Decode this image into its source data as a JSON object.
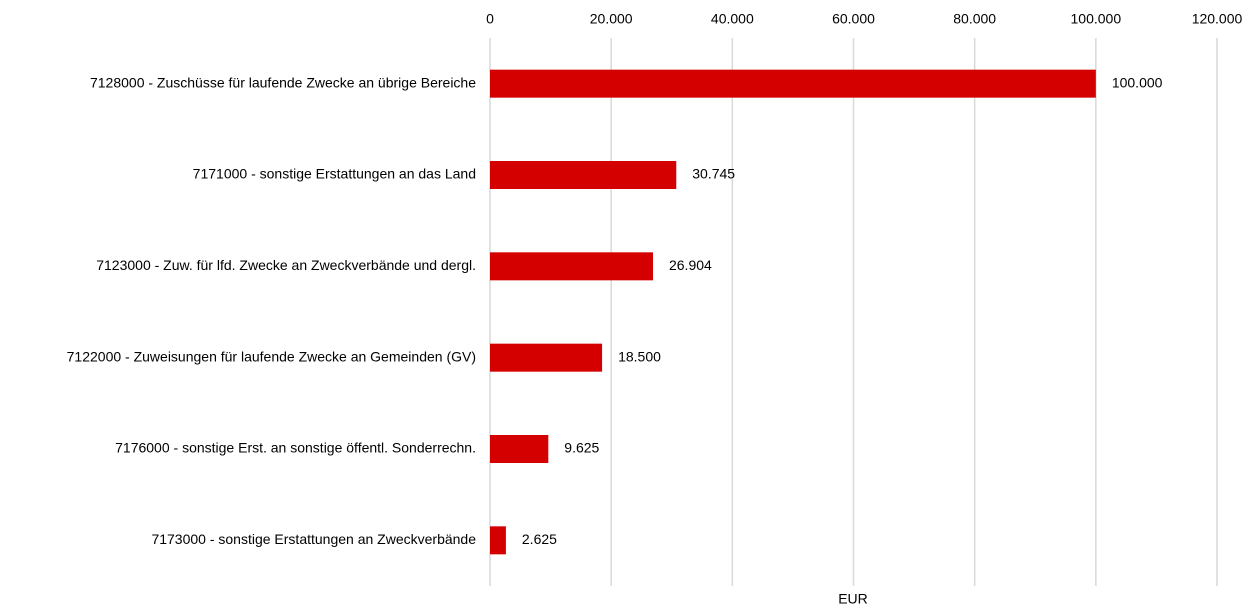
{
  "chart_data": {
    "type": "hbar",
    "categories": [
      "7128000 - Zuschüsse für laufende Zwecke an übrige Bereiche",
      "7171000 - sonstige Erstattungen an das Land",
      "7123000 - Zuw. für lfd. Zwecke an Zweckverbände und dergl.",
      "7122000 - Zuweisungen für laufende Zwecke an Gemeinden (GV)",
      "7176000 - sonstige Erst. an sonstige öffentl. Sonderrechn.",
      "7173000 - sonstige Erstattungen an Zweckverbände"
    ],
    "values": [
      100000,
      30745,
      26904,
      18500,
      9625,
      2625
    ],
    "value_labels": [
      "100.000",
      "30.745",
      "26.904",
      "18.500",
      "9.625",
      "2.625"
    ],
    "color": "#d40000",
    "xlabel": "EUR",
    "xlim": [
      0,
      120000
    ],
    "xticks": [
      0,
      {
        "value": 20000,
        "label": "20.000"
      },
      {
        "value": 40000,
        "label": "40.000"
      },
      {
        "value": 60000,
        "label": "60.000"
      },
      {
        "value": 80000,
        "label": "80.000"
      },
      {
        "value": 100000,
        "label": "100.000"
      },
      {
        "value": 120000,
        "label": "120.000"
      }
    ],
    "grid": true
  }
}
